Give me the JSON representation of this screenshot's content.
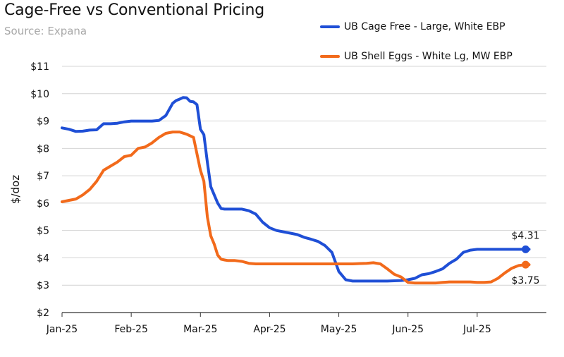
{
  "chart_data": {
    "type": "line",
    "title": "Cage-Free vs Conventional Pricing",
    "subtitle": "Source: Expana",
    "ylabel": "$/doz",
    "xlabel": "",
    "ylim": [
      2,
      11
    ],
    "yticks": [
      2,
      3,
      4,
      5,
      6,
      7,
      8,
      9,
      10,
      11
    ],
    "ytick_labels": [
      "$2",
      "$3",
      "$4",
      "$5",
      "$6",
      "$7",
      "$8",
      "$9",
      "$10",
      "$11"
    ],
    "xlim": [
      0,
      7
    ],
    "xticks": [
      0,
      1,
      2,
      3,
      4,
      5,
      6
    ],
    "xtick_labels": [
      "Jan-25",
      "Feb-25",
      "Mar-25",
      "Apr-25",
      "May-25",
      "Jun-25",
      "Jul-25"
    ],
    "grid": true,
    "legend_position": "top-right",
    "series": [
      {
        "name": "UB Cage Free - Large, White EBP",
        "color": "#1f4fd6",
        "x": [
          0,
          0.1,
          0.2,
          0.3,
          0.4,
          0.5,
          0.6,
          0.7,
          0.8,
          0.9,
          1.0,
          1.2,
          1.3,
          1.4,
          1.5,
          1.6,
          1.65,
          1.7,
          1.75,
          1.8,
          1.85,
          1.9,
          1.95,
          2.0,
          2.05,
          2.1,
          2.15,
          2.2,
          2.25,
          2.3,
          2.35,
          2.4,
          2.45,
          2.5,
          2.55,
          2.6,
          2.7,
          2.8,
          2.9,
          3.0,
          3.1,
          3.2,
          3.3,
          3.4,
          3.5,
          3.6,
          3.7,
          3.8,
          3.9,
          4.0,
          4.1,
          4.2,
          4.3,
          4.4,
          4.5,
          4.6,
          4.7,
          4.8,
          4.9,
          5.0,
          5.1,
          5.2,
          5.3,
          5.4,
          5.5,
          5.6,
          5.7,
          5.8,
          5.9,
          6.0,
          6.1,
          6.2,
          6.3,
          6.4,
          6.5,
          6.6,
          6.7,
          6.75
        ],
        "y": [
          8.75,
          8.7,
          8.62,
          8.63,
          8.67,
          8.68,
          8.9,
          8.9,
          8.92,
          8.97,
          9.0,
          9.0,
          9.0,
          9.02,
          9.2,
          9.65,
          9.75,
          9.8,
          9.86,
          9.85,
          9.72,
          9.7,
          9.6,
          8.7,
          8.5,
          7.5,
          6.6,
          6.3,
          6.0,
          5.8,
          5.78,
          5.78,
          5.78,
          5.78,
          5.78,
          5.78,
          5.72,
          5.6,
          5.3,
          5.1,
          5.0,
          4.95,
          4.9,
          4.85,
          4.75,
          4.68,
          4.6,
          4.45,
          4.2,
          3.5,
          3.2,
          3.15,
          3.15,
          3.15,
          3.15,
          3.15,
          3.15,
          3.16,
          3.17,
          3.2,
          3.25,
          3.38,
          3.42,
          3.5,
          3.6,
          3.8,
          3.95,
          4.2,
          4.28,
          4.31,
          4.31,
          4.31,
          4.31,
          4.31,
          4.31,
          4.31,
          4.31,
          4.31
        ]
      },
      {
        "name": "UB Shell Eggs - White Lg, MW EBP",
        "color": "#f26a1b",
        "x": [
          0,
          0.1,
          0.2,
          0.3,
          0.4,
          0.5,
          0.6,
          0.7,
          0.8,
          0.9,
          1.0,
          1.1,
          1.2,
          1.3,
          1.4,
          1.5,
          1.6,
          1.7,
          1.8,
          1.9,
          2.0,
          2.05,
          2.1,
          2.15,
          2.2,
          2.25,
          2.3,
          2.35,
          2.4,
          2.5,
          2.6,
          2.7,
          2.8,
          2.9,
          3.0,
          3.2,
          3.4,
          3.6,
          3.8,
          4.0,
          4.2,
          4.4,
          4.5,
          4.6,
          4.7,
          4.8,
          4.9,
          5.0,
          5.1,
          5.2,
          5.3,
          5.4,
          5.5,
          5.6,
          5.7,
          5.8,
          5.9,
          6.0,
          6.1,
          6.2,
          6.3,
          6.4,
          6.5,
          6.6,
          6.7,
          6.75
        ],
        "y": [
          6.05,
          6.1,
          6.15,
          6.3,
          6.5,
          6.8,
          7.2,
          7.35,
          7.5,
          7.7,
          7.75,
          8.0,
          8.05,
          8.2,
          8.4,
          8.55,
          8.6,
          8.6,
          8.52,
          8.4,
          7.2,
          6.8,
          5.5,
          4.8,
          4.5,
          4.1,
          3.95,
          3.92,
          3.9,
          3.9,
          3.87,
          3.8,
          3.78,
          3.78,
          3.78,
          3.78,
          3.78,
          3.78,
          3.78,
          3.78,
          3.78,
          3.8,
          3.82,
          3.78,
          3.6,
          3.4,
          3.3,
          3.1,
          3.08,
          3.08,
          3.08,
          3.08,
          3.1,
          3.12,
          3.12,
          3.12,
          3.12,
          3.1,
          3.1,
          3.12,
          3.25,
          3.45,
          3.62,
          3.72,
          3.75,
          3.75
        ]
      }
    ],
    "end_labels": [
      {
        "series": 0,
        "x": 6.7,
        "y": 4.31,
        "text": "$4.31",
        "position": "above"
      },
      {
        "series": 1,
        "x": 6.7,
        "y": 3.75,
        "text": "$3.75",
        "position": "below"
      }
    ]
  }
}
